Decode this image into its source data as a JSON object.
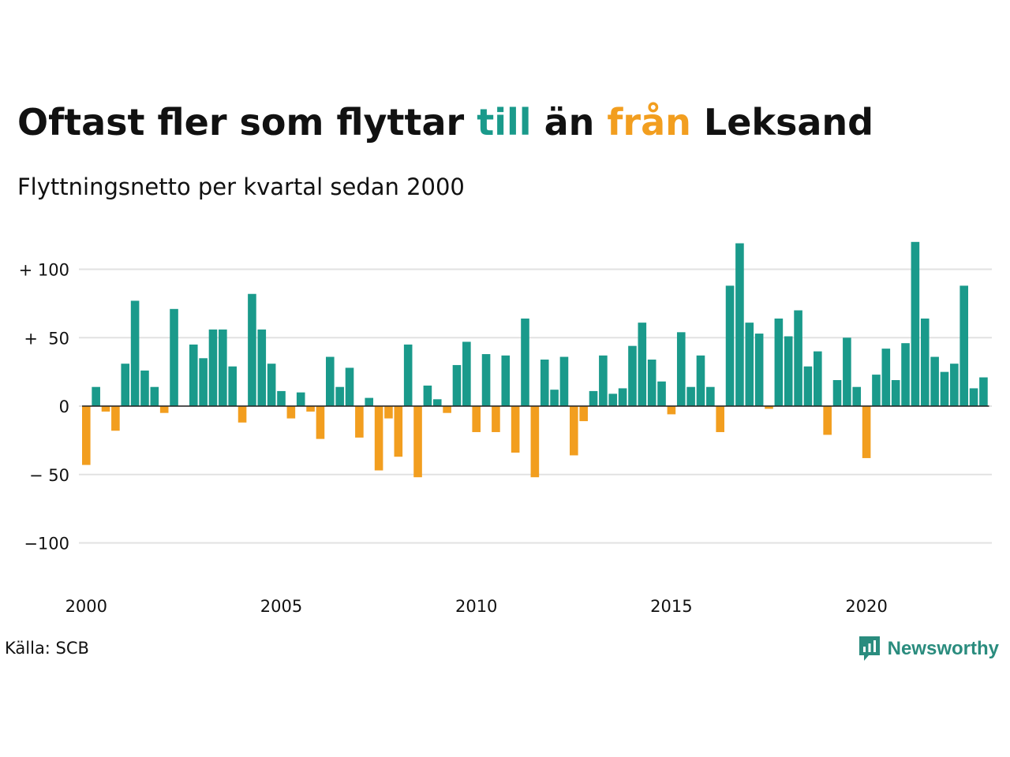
{
  "title": {
    "part1": "Oftast fler som flyttar ",
    "till": "till",
    "part2": " än ",
    "fran": "från",
    "part3": " Leksand"
  },
  "subtitle": "Flyttningsnetto per kvartal sedan 2000",
  "source": "Källa: SCB",
  "brand": {
    "name": "Newsworthy",
    "icon": "newsworthy-logo-icon"
  },
  "colors": {
    "positive": "#1a9a8b",
    "negative": "#f29e1f",
    "grid": "#e2e2e2"
  },
  "chart_data": {
    "type": "bar",
    "title": "Oftast fler som flyttar till än från Leksand",
    "subtitle": "Flyttningsnetto per kvartal sedan 2000",
    "x_start": 2000,
    "x_step": 0.25,
    "ylim": [
      -130,
      120
    ],
    "yticks": [
      100,
      50,
      0,
      -50,
      -100
    ],
    "ytick_labels": [
      "+ 100",
      "+  50",
      "0",
      "− 50",
      "−100"
    ],
    "xticks": [
      2000,
      2005,
      2010,
      2015,
      2020
    ],
    "xtick_labels": [
      "2000",
      "2005",
      "2010",
      "2015",
      "2020"
    ],
    "grid": true,
    "values": [
      -43,
      14,
      -4,
      -18,
      31,
      77,
      26,
      14,
      -5,
      71,
      0,
      45,
      35,
      56,
      56,
      29,
      -12,
      82,
      56,
      31,
      11,
      -9,
      10,
      -4,
      -24,
      36,
      14,
      28,
      -23,
      6,
      -47,
      -9,
      -37,
      45,
      -52,
      15,
      5,
      -5,
      30,
      47,
      -19,
      38,
      -19,
      37,
      -34,
      64,
      -52,
      34,
      12,
      36,
      -36,
      -11,
      11,
      37,
      9,
      13,
      44,
      61,
      34,
      18,
      -6,
      54,
      14,
      37,
      14,
      -19,
      88,
      119,
      61,
      53,
      -2,
      64,
      51,
      70,
      29,
      40,
      -21,
      19,
      50,
      14,
      -38,
      23,
      42,
      19,
      46,
      120,
      64,
      36,
      25,
      31,
      88,
      13,
      21
    ]
  }
}
